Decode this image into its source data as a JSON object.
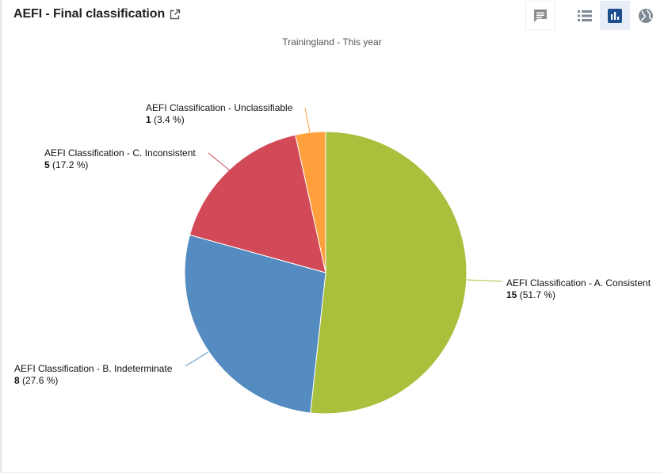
{
  "header": {
    "title": "AEFI - Final classification",
    "open_icon": "open-in-new-icon"
  },
  "toolbar": {
    "buttons": [
      {
        "icon": "comment-icon",
        "active": false
      },
      {
        "icon": "list-icon",
        "active": false
      },
      {
        "icon": "bar-chart-icon",
        "active": true
      },
      {
        "icon": "globe-icon",
        "active": false
      }
    ]
  },
  "colors": {
    "consistent": "#a8c03c",
    "indeterminate": "#548bc0",
    "inconsistent": "#d24a58",
    "unclassifiable": "#ffa03c"
  },
  "chart_data": {
    "type": "pie",
    "title": "",
    "subtitle": "Trainingland - This year",
    "slices": [
      {
        "label": "AEFI Classification - A. Consistent",
        "value": 15,
        "percent_text": "(51.7 %)",
        "color": "#a8c03c"
      },
      {
        "label": "AEFI Classification - B. Indeterminate",
        "value": 8,
        "percent_text": "(27.6 %)",
        "color": "#548bc0"
      },
      {
        "label": "AEFI Classification - C. Inconsistent",
        "value": 5,
        "percent_text": "(17.2 %)",
        "color": "#d24a58"
      },
      {
        "label": "AEFI Classification - Unclassifiable",
        "value": 1,
        "percent_text": "(3.4 %)",
        "color": "#ffa03c"
      }
    ]
  }
}
